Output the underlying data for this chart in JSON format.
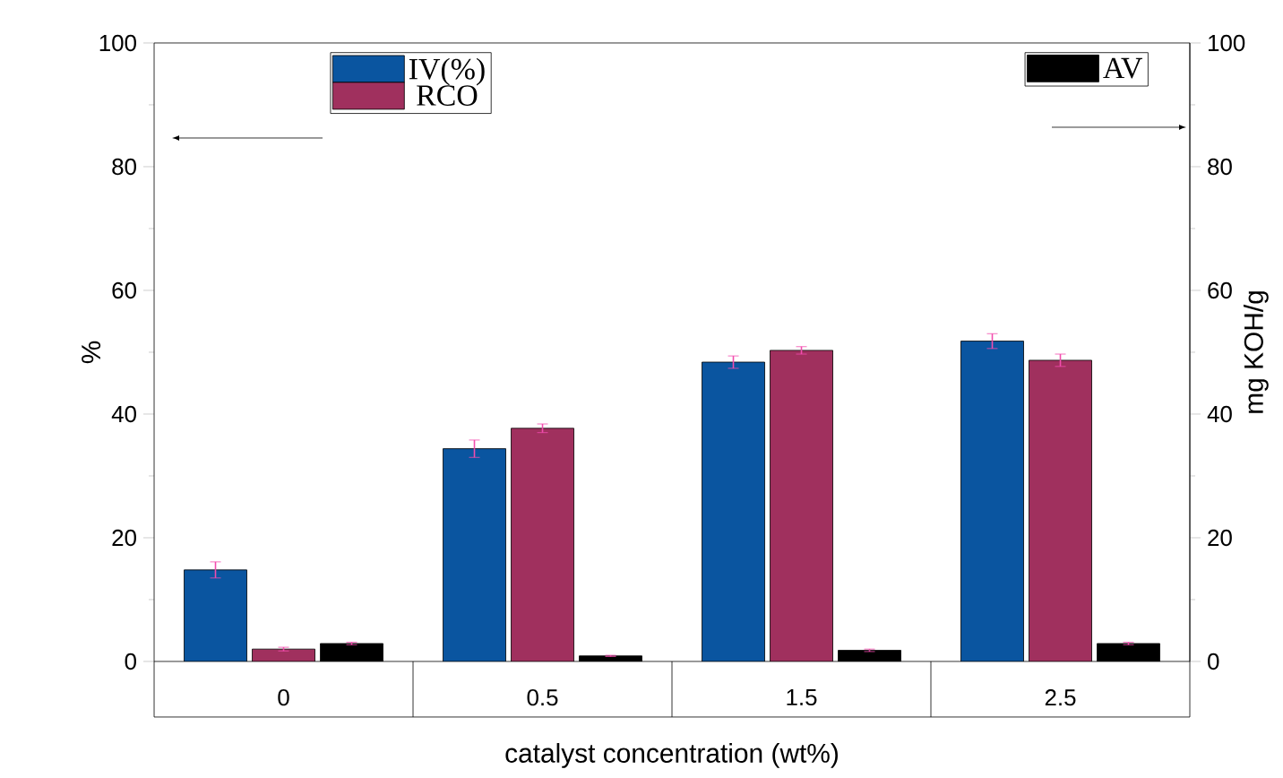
{
  "chart_data": {
    "type": "bar",
    "xlabel": "catalyst concentration (wt%)",
    "ylabel": "%",
    "y2label": "mg KOH/g",
    "categories": [
      "0",
      "0.5",
      "1.5",
      "2.5"
    ],
    "series": [
      {
        "name": "IV(%)",
        "color": "#0a55a0",
        "values": [
          14.8,
          34.4,
          48.4,
          51.8
        ],
        "errors": [
          1.3,
          1.4,
          1.0,
          1.2
        ]
      },
      {
        "name": "RCO",
        "color": "#a0305e",
        "values": [
          2.0,
          37.7,
          50.3,
          48.7
        ],
        "errors": [
          0.3,
          0.7,
          0.6,
          1.0
        ]
      },
      {
        "name": "AV",
        "color": "#000000",
        "values": [
          2.9,
          0.9,
          1.8,
          2.9
        ],
        "errors": [
          0.2,
          0.1,
          0.2,
          0.2
        ],
        "axis": "y2"
      }
    ],
    "ylim": [
      0,
      100
    ],
    "yticks": [
      0,
      20,
      40,
      60,
      80,
      100
    ],
    "y2lim": [
      0,
      100
    ],
    "y2ticks": [
      0,
      20,
      40,
      60,
      80,
      100
    ],
    "legend": "top"
  }
}
